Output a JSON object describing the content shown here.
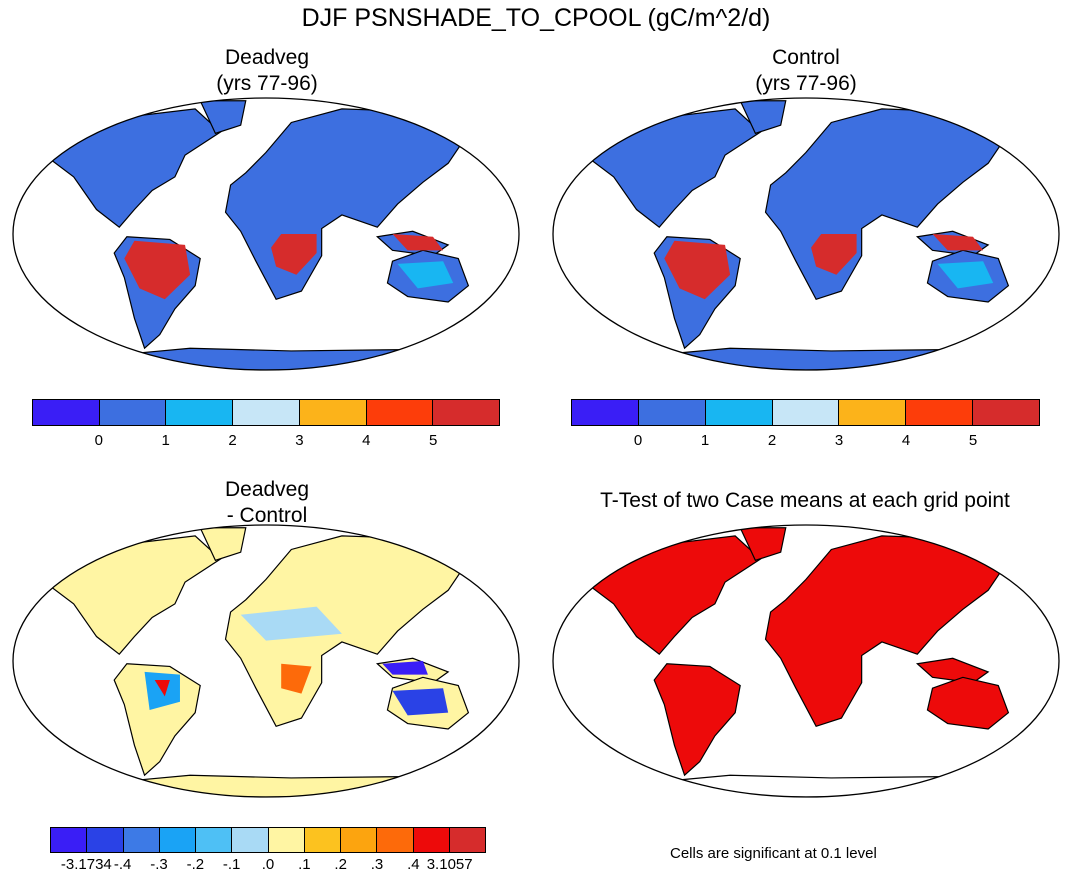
{
  "figure": {
    "title": "DJF PSNSHADE_TO_CPOOL (gC/m^2/d)"
  },
  "panels": {
    "deadveg": {
      "title": "Deadveg",
      "subtitle": "(yrs 77-96)"
    },
    "control": {
      "title": "Control",
      "subtitle": "(yrs 77-96)"
    },
    "diff": {
      "title": "Deadveg",
      "subtitle": "- Control"
    },
    "ttest": {
      "title": "T-Test of two Case means at each grid point"
    }
  },
  "colorbars": {
    "main": {
      "colors": [
        "#3a1ef6",
        "#3d6fe0",
        "#18b6f2",
        "#c7e6f7",
        "#fcb31a",
        "#fd3d0a",
        "#d62c2c"
      ],
      "labels": [
        "0",
        "1",
        "2",
        "3",
        "4",
        "5"
      ]
    },
    "diff": {
      "colors": [
        "#3a1ef6",
        "#2a42e6",
        "#3d7ae6",
        "#1aa3f5",
        "#4ec0f5",
        "#a9daf5",
        "#fff5a3",
        "#fcc21f",
        "#fca40f",
        "#fd6a0a",
        "#ed0a0a",
        "#d62c2c"
      ],
      "labels": [
        "-3.1734",
        "-.4",
        "-.3",
        "-.2",
        "-.1",
        ".0",
        ".1",
        ".2",
        ".3",
        ".4",
        "3.1057"
      ]
    }
  },
  "note": "Cells are significant at 0.1 level"
}
